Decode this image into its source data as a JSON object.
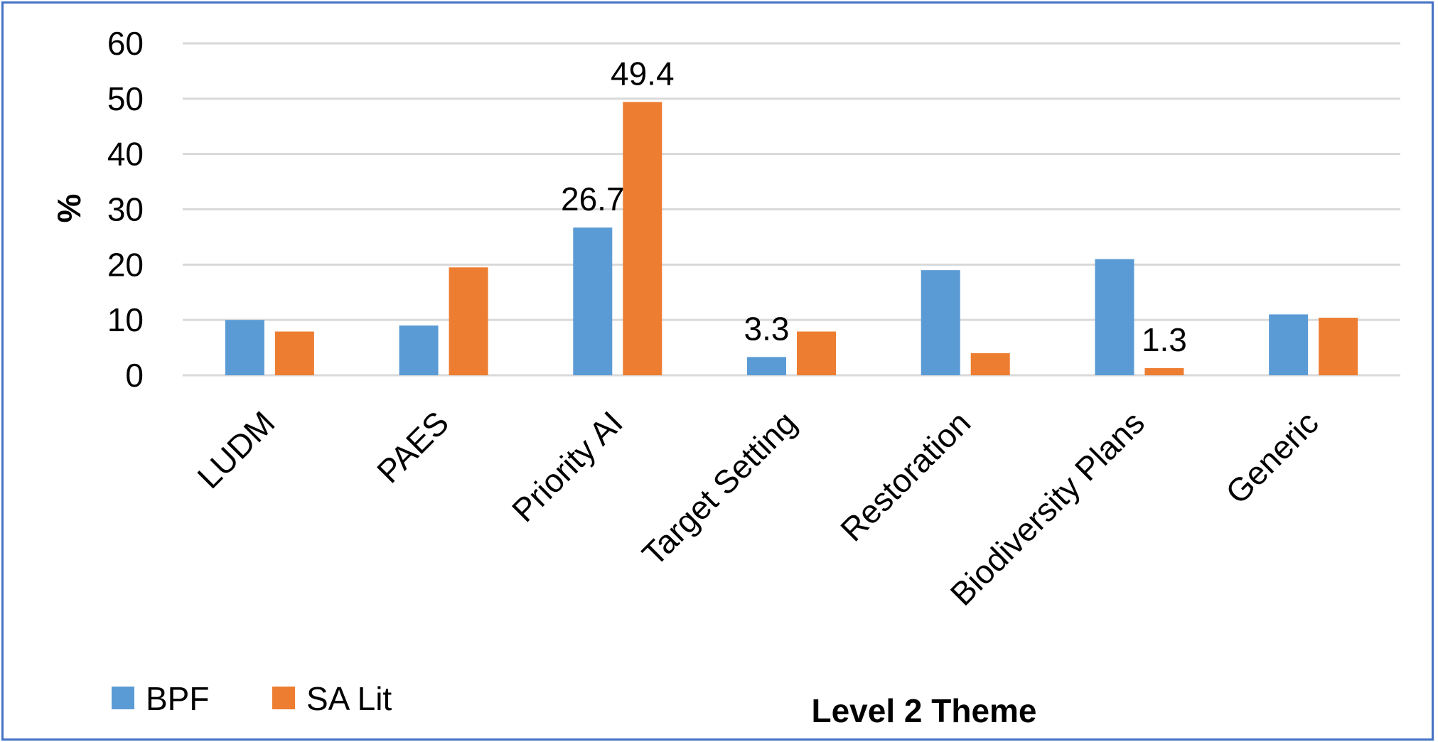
{
  "chart_data": {
    "type": "bar",
    "categories": [
      "LUDM",
      "PAES",
      "Priority AI",
      "Target Setting",
      "Restoration",
      "Biodiversity Plans",
      "Generic"
    ],
    "series": [
      {
        "name": "BPF",
        "color": "#5b9bd5",
        "values": [
          10,
          9,
          26.7,
          3.3,
          19,
          21,
          11
        ]
      },
      {
        "name": "SA Lit",
        "color": "#ed7d31",
        "values": [
          7.9,
          19.5,
          49.4,
          7.9,
          4,
          1.3,
          10.4
        ]
      }
    ],
    "data_labels": [
      {
        "series": 0,
        "index": 2,
        "text": "26.7"
      },
      {
        "series": 1,
        "index": 2,
        "text": "49.4"
      },
      {
        "series": 0,
        "index": 3,
        "text": "3.3"
      },
      {
        "series": 1,
        "index": 5,
        "text": "1.3"
      }
    ],
    "title": "",
    "xlabel": "Level 2 Theme",
    "ylabel": "%",
    "ylim": [
      0,
      60
    ],
    "yticks": [
      0,
      10,
      20,
      30,
      40,
      50,
      60
    ],
    "grid": true,
    "legend_position": "bottom-left"
  }
}
